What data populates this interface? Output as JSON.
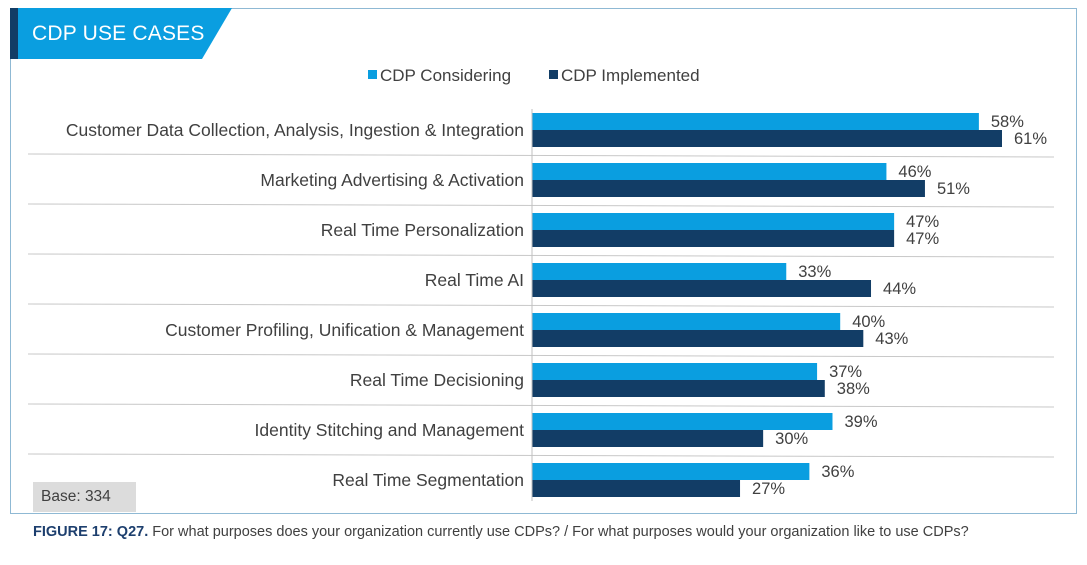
{
  "header": {
    "title": "CDP USE CASES"
  },
  "colors": {
    "considering": "#0a9ee0",
    "implemented": "#123d66",
    "banner": "#0a9ee0",
    "banner_accent": "#123d66"
  },
  "chart_data": {
    "type": "bar",
    "orientation": "horizontal",
    "categories": [
      "Customer Data Collection, Analysis, Ingestion & Integration",
      "Marketing Advertising & Activation",
      "Real Time Personalization",
      "Real Time AI",
      "Customer Profiling, Unification & Management",
      "Real Time Decisioning",
      "Identity Stitching and Management",
      "Real Time Segmentation"
    ],
    "series": [
      {
        "name": "CDP Considering",
        "values": [
          58,
          46,
          47,
          33,
          40,
          37,
          39,
          36
        ],
        "labels": [
          "58%",
          "46%",
          "47%",
          "33%",
          "40%",
          "37%",
          "39%",
          "36%"
        ]
      },
      {
        "name": "CDP Implemented",
        "values": [
          61,
          51,
          47,
          44,
          43,
          38,
          30,
          27
        ],
        "labels": [
          "61%",
          "51%",
          "47%",
          "44%",
          "43%",
          "38%",
          "30%",
          "27%"
        ]
      }
    ],
    "unit": "%",
    "xlim": [
      0,
      70
    ],
    "legend": "top-center",
    "grid": false
  },
  "base": {
    "label": "Base: 334"
  },
  "caption": {
    "figure": "FIGURE 17: Q27.",
    "text": "For what purposes does your organization currently use CDPs? / For what purposes would your organization like to use CDPs?"
  }
}
